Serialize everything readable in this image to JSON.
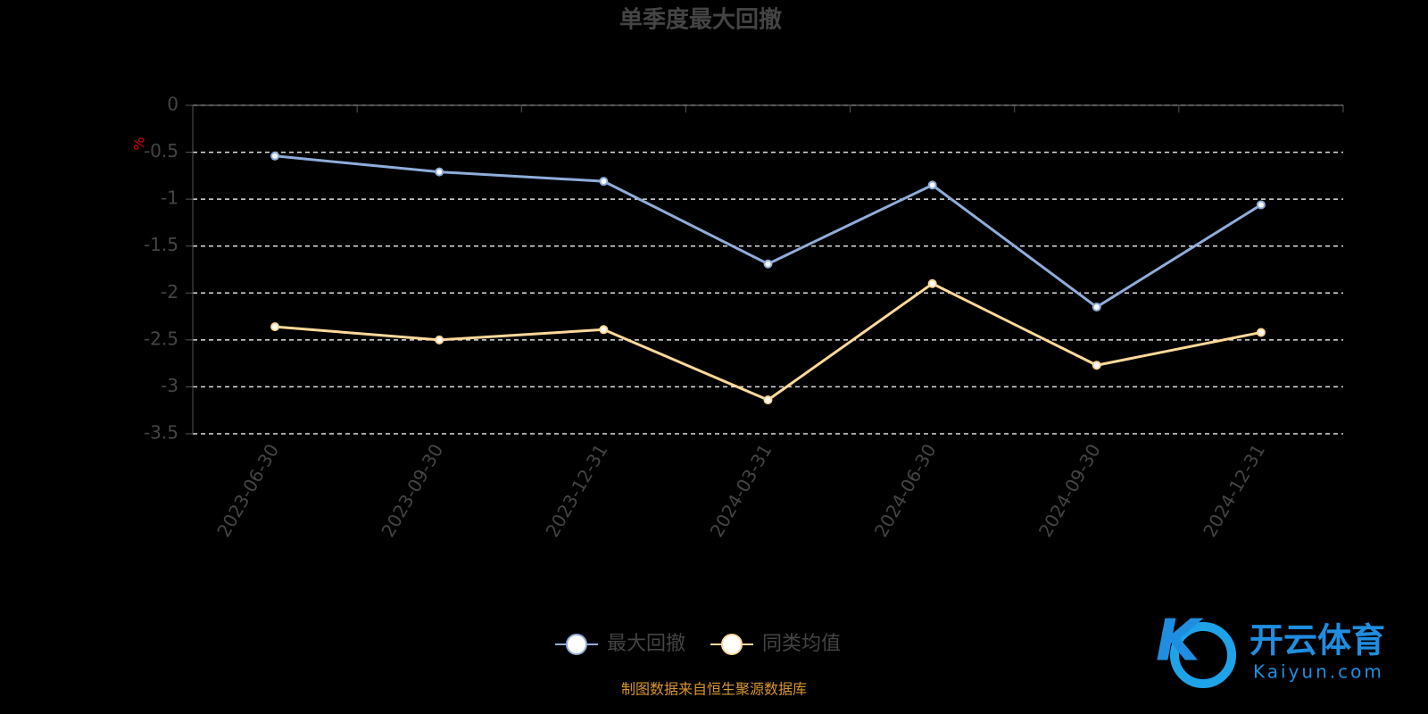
{
  "chart_data": {
    "type": "line",
    "title": "单季度最大回撤",
    "y_unit": "%",
    "categories": [
      "2023-06-30",
      "2023-09-30",
      "2023-12-31",
      "2024-03-31",
      "2024-06-30",
      "2024-09-30",
      "2024-12-31"
    ],
    "series": [
      {
        "name": "最大回撤",
        "color": "#8fadda",
        "values": [
          -0.54,
          -0.71,
          -0.81,
          -1.69,
          -0.85,
          -2.15,
          -1.06
        ]
      },
      {
        "name": "同类均值",
        "color": "#ffd99a",
        "values": [
          -2.36,
          -2.5,
          -2.39,
          -3.14,
          -1.9,
          -2.77,
          -2.42
        ]
      }
    ],
    "ylim": [
      -3.5,
      0
    ],
    "yticks": [
      0,
      -0.5,
      -1,
      -1.5,
      -2,
      -2.5,
      -3,
      -3.5
    ],
    "grid": true,
    "source": "制图数据来自恒生聚源数据库"
  },
  "watermark": {
    "name": "开云体育",
    "url": "Kaiyun.com"
  }
}
